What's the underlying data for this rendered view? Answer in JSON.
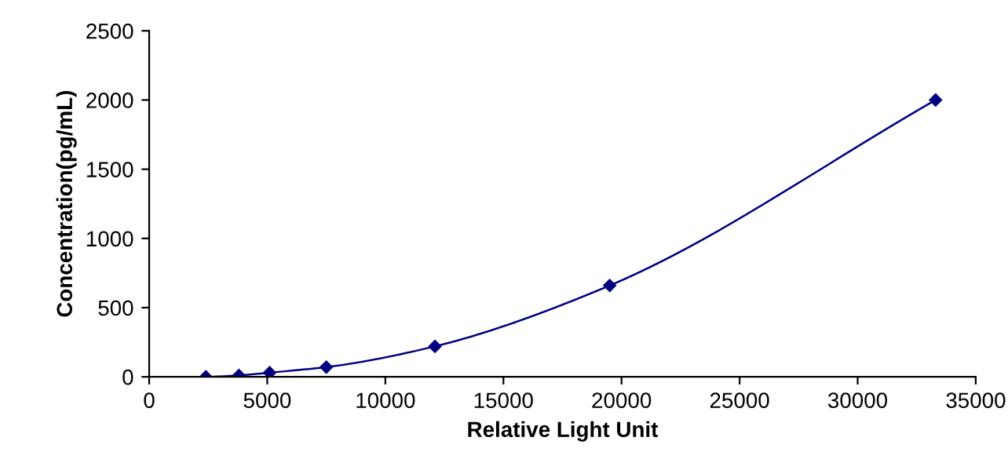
{
  "chart_data": {
    "type": "line",
    "xlabel": "Relative Light Unit",
    "ylabel": "Concentration(pg/mL)",
    "x": [
      2400,
      3800,
      5100,
      7500,
      12100,
      19500,
      33300
    ],
    "series": [
      {
        "color": "#000080",
        "values": [
          0,
          10,
          30,
          70,
          220,
          660,
          2000
        ]
      }
    ],
    "marker": "diamond",
    "line_style": "solid",
    "grid": false,
    "legend": false,
    "xlim": [
      0,
      35000
    ],
    "xticks": [
      0,
      5000,
      10000,
      15000,
      20000,
      25000,
      30000,
      35000
    ],
    "ylim": [
      0,
      2500
    ],
    "yticks": [
      0,
      500,
      1000,
      1500,
      2000,
      2500
    ]
  }
}
